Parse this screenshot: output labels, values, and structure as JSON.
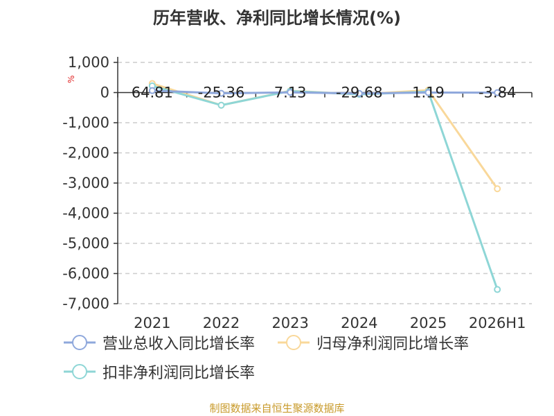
{
  "title": "历年营收、净利同比增长情况(%)",
  "unit_label": "%",
  "source": "制图数据来自恒生聚源数据库",
  "chart_data": {
    "type": "line",
    "title": "历年营收、净利同比增长情况(%)",
    "categories": [
      "2021",
      "2022",
      "2023",
      "2024",
      "2025",
      "2026H1"
    ],
    "ylim": [
      -7000,
      1000
    ],
    "yticks": [
      1000,
      0,
      -1000,
      -2000,
      -3000,
      -4000,
      -5000,
      -6000,
      -7000
    ],
    "ytick_labels": [
      "1,000",
      "0",
      "-1,000",
      "-2,000",
      "-3,000",
      "-4,000",
      "-5,000",
      "-6,000",
      "-7,000"
    ],
    "grid": true,
    "legend_position": "bottom-left",
    "series": [
      {
        "name": "营业总收入同比增长率",
        "color": "#8fa8dc",
        "values": [
          64.81,
          -25.36,
          7.13,
          -29.68,
          1.19,
          -3.84
        ]
      },
      {
        "name": "归母净利润同比增长率",
        "color": "#f9d89a",
        "values": [
          300,
          -420,
          60,
          -60,
          80,
          -3190
        ]
      },
      {
        "name": "扣非净利润同比增长率",
        "color": "#8ed6d6",
        "values": [
          220,
          -420,
          50,
          -60,
          30,
          -6530
        ]
      }
    ],
    "data_labels": [
      "64.81",
      "-25.36",
      "7.13",
      "-29.68",
      "1.19",
      "-3.84"
    ]
  }
}
